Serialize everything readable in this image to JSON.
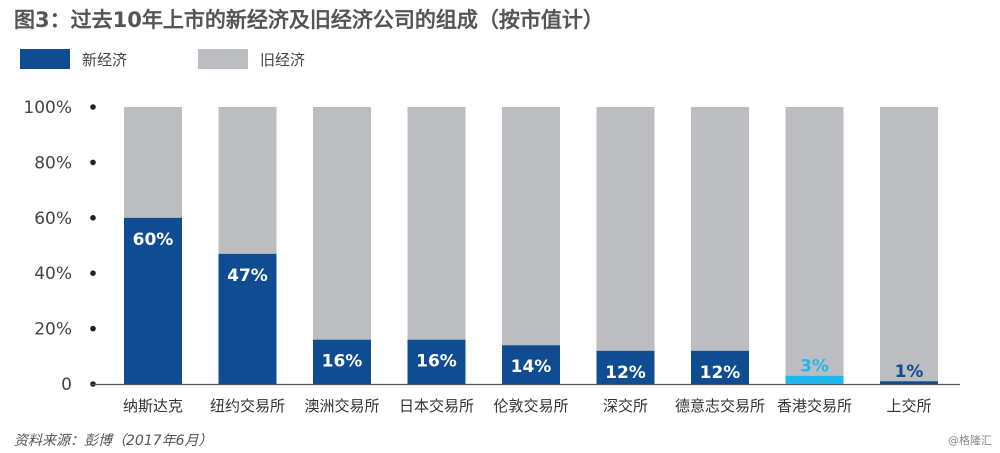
{
  "title": "图3：过去10年上市的新经济及旧经济公司的组成（按市值计）",
  "source": "资料来源：彭博（2017年6月）",
  "watermark": "@格隆汇",
  "colors": {
    "new": "#0f4c91",
    "old": "#bcbdc0",
    "highlight": "#1fb6f0"
  },
  "chart_data": {
    "type": "bar",
    "stacked": true,
    "title": "图3：过去10年上市的新经济及旧经济公司的组成（按市值计）",
    "categories": [
      "纳斯达克",
      "纽约交易所",
      "澳洲交易所",
      "日本交易所",
      "伦敦交易所",
      "深交所",
      "德意志交易所",
      "香港交易所",
      "上交所"
    ],
    "series": [
      {
        "name": "新经济",
        "values": [
          60,
          47,
          16,
          16,
          14,
          12,
          12,
          3,
          1
        ]
      },
      {
        "name": "旧经济",
        "values": [
          40,
          53,
          84,
          84,
          86,
          88,
          88,
          97,
          99
        ]
      }
    ],
    "data_labels": [
      "60%",
      "47%",
      "16%",
      "16%",
      "14%",
      "12%",
      "12%",
      "3%",
      "1%"
    ],
    "yticks": [
      "0",
      "20%",
      "40%",
      "60%",
      "80%",
      "100%"
    ],
    "ylim": [
      0,
      100
    ],
    "legend_position": "top-left",
    "grid": false
  }
}
